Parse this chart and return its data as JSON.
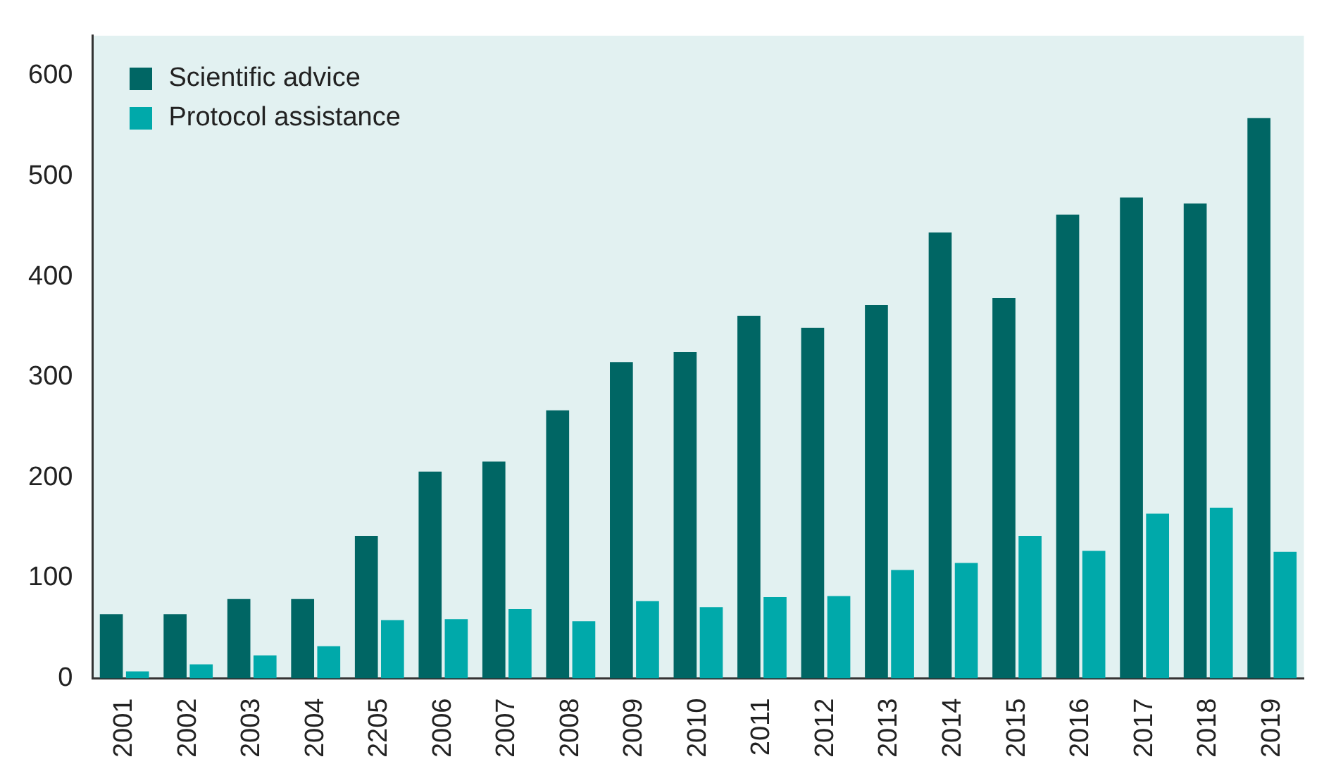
{
  "chart_data": {
    "type": "bar",
    "categories": [
      "2001",
      "2002",
      "2003",
      "2004",
      "2205",
      "2006",
      "2007",
      "2008",
      "2009",
      "2010",
      "2011",
      "2012",
      "2013",
      "2014",
      "2015",
      "2016",
      "2017",
      "2018",
      "2019"
    ],
    "series": [
      {
        "name": "Scientific advice",
        "color": "#006664",
        "values": [
          64,
          64,
          79,
          79,
          142,
          206,
          216,
          267,
          315,
          325,
          361,
          349,
          372,
          444,
          379,
          462,
          479,
          473,
          558
        ]
      },
      {
        "name": "Protocol assistance",
        "color": "#00a9aa",
        "values": [
          7,
          14,
          23,
          32,
          58,
          59,
          69,
          57,
          77,
          71,
          81,
          82,
          108,
          115,
          142,
          127,
          164,
          170,
          126
        ]
      }
    ],
    "ylim": [
      0,
      640
    ],
    "yticks": [
      0,
      100,
      200,
      300,
      400,
      500,
      600
    ],
    "grid": false,
    "legend": "top left"
  }
}
